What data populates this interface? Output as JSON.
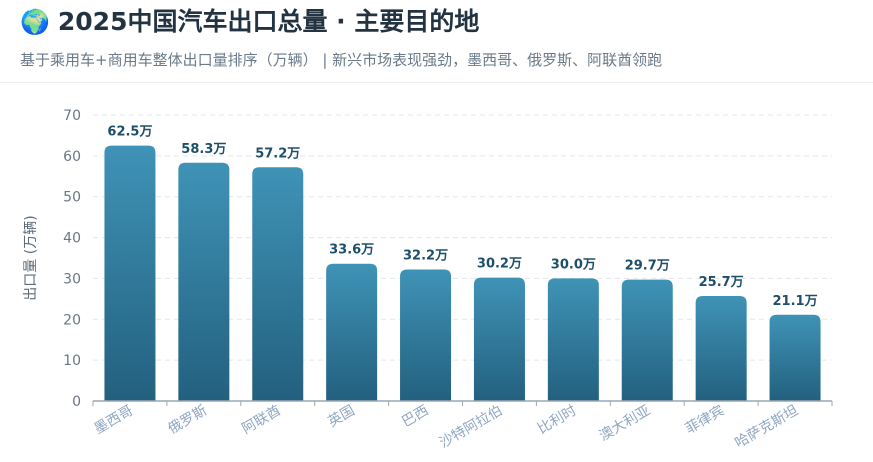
{
  "header": {
    "icon": "globe-icon",
    "emoji": "🌍",
    "title": "2025中国汽车出口总量 · 主要目的地",
    "subtitle": "基于乘用车+商用车整体出口量排序（万辆） | 新兴市场表现强劲，墨西哥、俄罗斯、阿联酋领跑"
  },
  "chart_data": {
    "type": "bar",
    "ylabel": "出口量 (万辆)",
    "ylim": [
      0,
      70
    ],
    "yticks": [
      0,
      10,
      20,
      30,
      40,
      50,
      60,
      70
    ],
    "grid": true,
    "categories": [
      "墨西哥",
      "俄罗斯",
      "阿联酋",
      "英国",
      "巴西",
      "沙特阿拉伯",
      "比利时",
      "澳大利亚",
      "菲律宾",
      "哈萨克斯坦"
    ],
    "values": [
      62.5,
      58.3,
      57.2,
      33.6,
      32.2,
      30.2,
      30.0,
      29.7,
      25.7,
      21.1
    ],
    "data_labels": [
      "62.5万",
      "58.3万",
      "57.2万",
      "33.6万",
      "32.2万",
      "30.2万",
      "30.0万",
      "29.7万",
      "25.7万",
      "21.1万"
    ],
    "colors": {
      "bar_top": "#3f93b6",
      "bar_bottom": "#23607f",
      "label": "#1e4f6a",
      "grid": "#e3e7eb",
      "axis": "#9aa7b4",
      "tick_text": "#6b7785",
      "category_text": "#8fa6c2"
    }
  }
}
